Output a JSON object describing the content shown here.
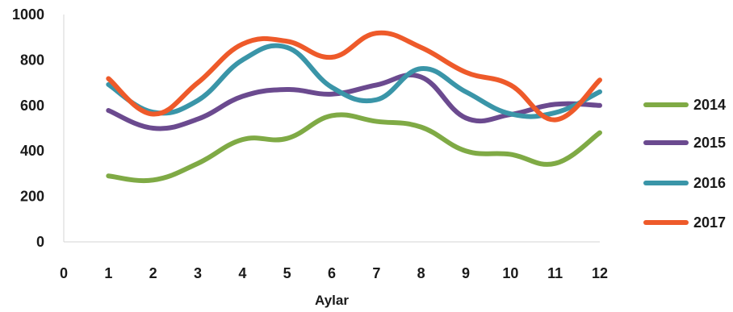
{
  "chart_data": {
    "type": "line",
    "smooth": true,
    "x": [
      1,
      2,
      3,
      4,
      5,
      6,
      7,
      8,
      9,
      10,
      11,
      12
    ],
    "xlabel": "Aylar",
    "ylabel": "",
    "xlim": [
      0,
      12
    ],
    "ylim": [
      0,
      1000
    ],
    "x_ticks": [
      "0",
      "1",
      "2",
      "3",
      "4",
      "5",
      "6",
      "7",
      "8",
      "9",
      "10",
      "11",
      "12"
    ],
    "y_ticks": [
      "0",
      "200",
      "400",
      "600",
      "800",
      "1000"
    ],
    "grid": false,
    "legend_position": "right",
    "series": [
      {
        "name": "2014",
        "color": "#7faa45",
        "values": [
          290,
          272,
          345,
          450,
          455,
          555,
          530,
          505,
          400,
          385,
          345,
          480
        ]
      },
      {
        "name": "2015",
        "color": "#6b4a8f",
        "values": [
          578,
          500,
          540,
          640,
          670,
          650,
          690,
          725,
          545,
          560,
          605,
          600
        ]
      },
      {
        "name": "2016",
        "color": "#3a95a8",
        "values": [
          692,
          570,
          622,
          800,
          855,
          680,
          625,
          762,
          660,
          563,
          568,
          660
        ]
      },
      {
        "name": "2017",
        "color": "#ee5a2a",
        "values": [
          718,
          562,
          700,
          870,
          882,
          812,
          918,
          855,
          746,
          690,
          537,
          712
        ]
      }
    ]
  }
}
